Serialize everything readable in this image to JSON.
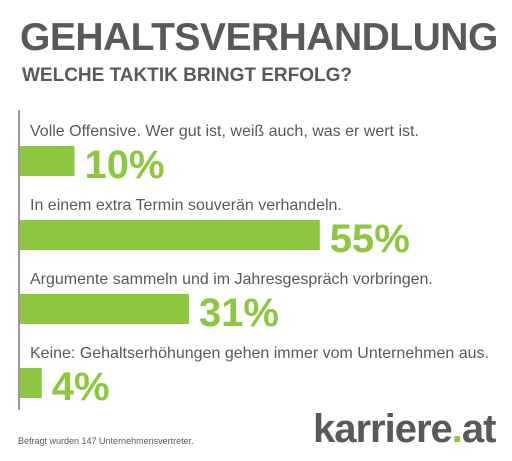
{
  "chart_data": {
    "type": "bar",
    "orientation": "horizontal",
    "title": "GEHALTSVERHANDLUNG",
    "subtitle": "WELCHE TAKTIK BRINGT ERFOLG?",
    "categories": [
      "Volle Offensive. Wer gut ist, weiß auch, was er wert ist.",
      "In einem extra Termin souverän verhandeln.",
      "Argumente sammeln und im Jahresgespräch vorbringen.",
      "Keine: Gehaltserhöhungen gehen immer vom Unternehmen aus."
    ],
    "values": [
      10,
      55,
      31,
      4
    ],
    "value_labels": [
      "10%",
      "55%",
      "31%",
      "4%"
    ],
    "unit": "%",
    "xlim": [
      0,
      100
    ],
    "grid": false,
    "legend": "none",
    "bar_color": "#8dc63f"
  },
  "footnote": "Befragt wurden 147 Unternehmensvertreter.",
  "brand": {
    "name": "karriere",
    "dot": ".",
    "tld": "at",
    "accent_color": "#8dc63f",
    "text_color": "#595959"
  }
}
